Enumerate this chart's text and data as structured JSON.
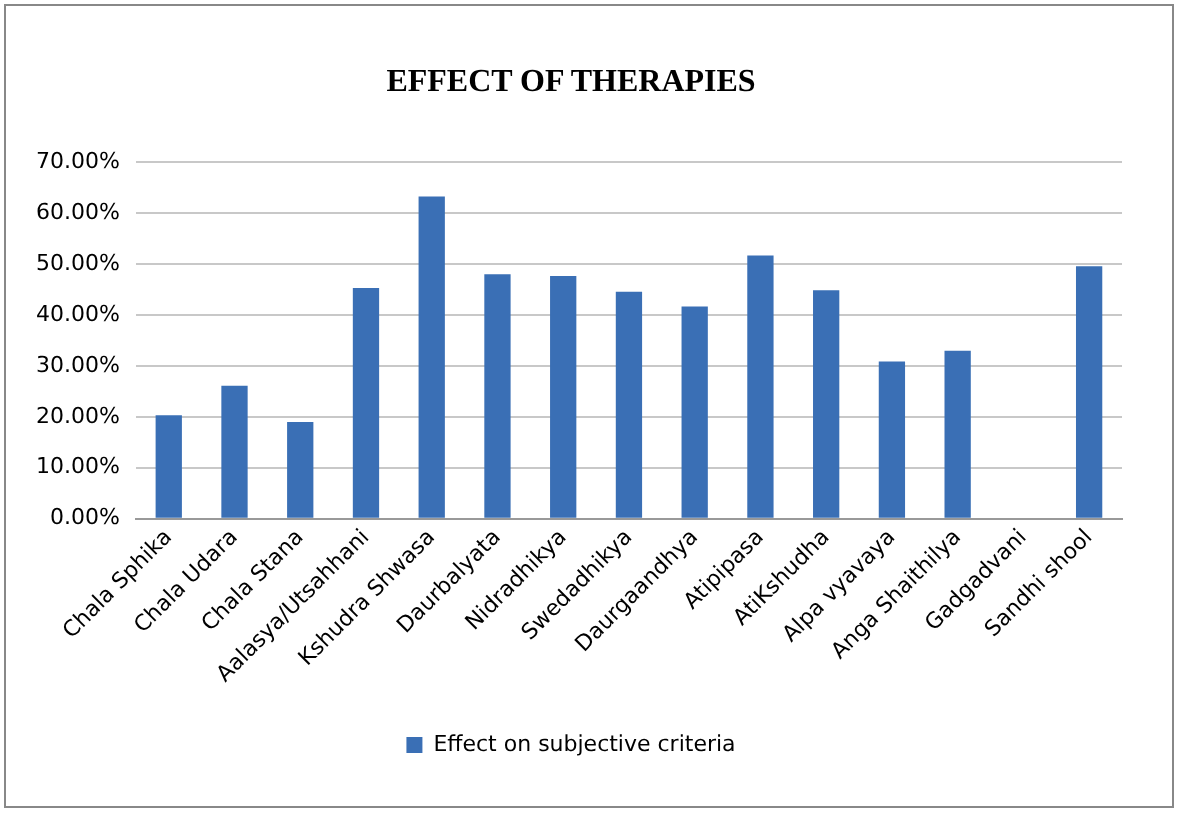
{
  "chart_data": {
    "type": "bar",
    "title": "EFFECT OF THERAPIES",
    "categories": [
      "Chala Sphika",
      "Chala Udara",
      "Chala Stana",
      "Aalasya/Utsahhani",
      "Kshudra Shwasa",
      "Daurbalyata",
      "Nidradhikya",
      "Swedadhikya",
      "Daurgaandhya",
      "Atipipasa",
      "AtiKshudha",
      "Alpa vyavaya",
      "Anga Shaithilya",
      "Gadgadvani",
      "Sandhi shool"
    ],
    "series": [
      {
        "name": "Effect on subjective criteria",
        "color": "#3a6fb5",
        "values": [
          20.3,
          26.1,
          19.0,
          45.3,
          63.3,
          48.0,
          47.7,
          44.6,
          41.7,
          51.7,
          44.9,
          30.9,
          33.0,
          0,
          49.6
        ]
      }
    ],
    "ylim": [
      0,
      70
    ],
    "yticks": [
      {
        "value": 0,
        "label": "0.00%"
      },
      {
        "value": 10,
        "label": "10.00%"
      },
      {
        "value": 20,
        "label": "20.00%"
      },
      {
        "value": 30,
        "label": "30.00%"
      },
      {
        "value": 40,
        "label": "40.00%"
      },
      {
        "value": 50,
        "label": "50.00%"
      },
      {
        "value": 60,
        "label": "60.00%"
      },
      {
        "value": 70,
        "label": "70.00%"
      }
    ],
    "grid": "y",
    "legend": "bottom"
  }
}
